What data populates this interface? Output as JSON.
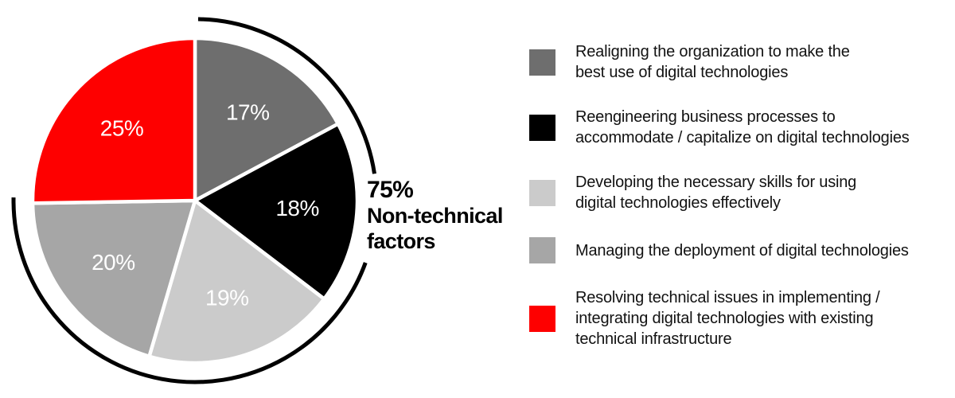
{
  "chart_data": {
    "type": "pie",
    "title": "",
    "legend_position": "right",
    "direction": "clockwise",
    "start_angle_deg": 0,
    "slice_label_color": "#ffffff",
    "slices": [
      {
        "label": "17%",
        "value": 17,
        "color": "#6e6e6e",
        "legend_lines": [
          "Realigning the organization to make the",
          "best use of digital technologies"
        ]
      },
      {
        "label": "18%",
        "value": 18,
        "color": "#000000",
        "legend_lines": [
          "Reengineering business processes to",
          "accommodate / capitalize on digital technologies"
        ]
      },
      {
        "label": "19%",
        "value": 19,
        "color": "#cbcbcb",
        "legend_lines": [
          "Developing the necessary skills for using",
          "digital technologies effectively"
        ]
      },
      {
        "label": "20%",
        "value": 20,
        "color": "#a6a6a6",
        "legend_lines": [
          "Managing the deployment of digital technologies"
        ]
      },
      {
        "label": "25%",
        "value": 25,
        "color": "#fe0000",
        "legend_lines": [
          "Resolving technical issues in implementing /",
          "integrating digital technologies with existing",
          "technical infrastructure"
        ]
      }
    ],
    "annotation": {
      "arc_coverage_pct": 75,
      "arc_color": "#000000",
      "lines": [
        "75%",
        "Non-technical",
        "factors"
      ]
    }
  }
}
